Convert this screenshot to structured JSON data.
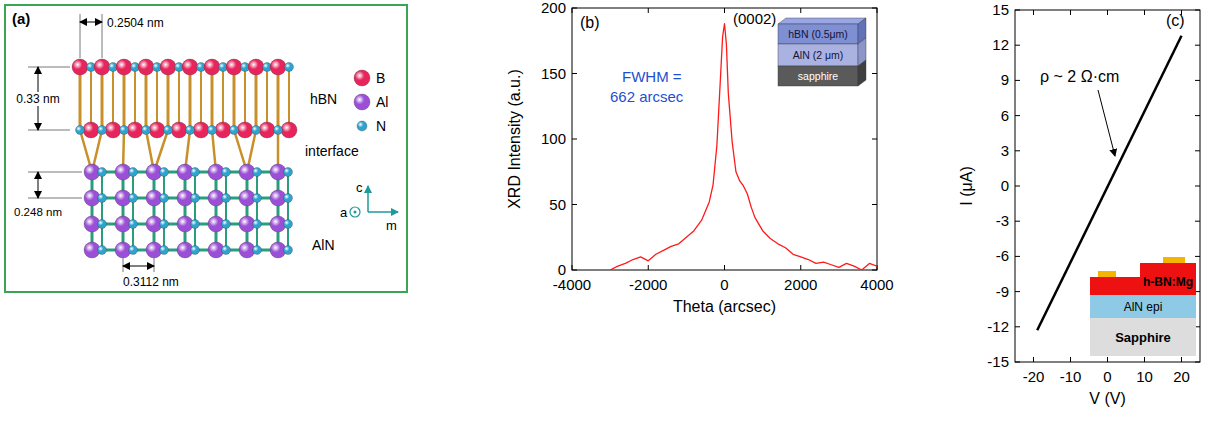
{
  "diagram": {
    "panel_label": "(a)",
    "dimensions": [
      "0.2504 nm",
      "0.33 nm",
      "0.248 nm",
      "0.3112 nm"
    ],
    "layers": [
      "hBN",
      "interface",
      "AlN"
    ],
    "legend": [
      {
        "label": "B",
        "color": "#e8245c"
      },
      {
        "label": "Al",
        "color": "#9b4fd6"
      },
      {
        "label": "N",
        "color": "#2fa3cf"
      }
    ],
    "axes": [
      "c",
      "a",
      "m"
    ]
  },
  "chart_data": [
    {
      "type": "line",
      "panel_label": "(b)",
      "x_label": "Theta (arcsec)",
      "y_label": "XRD Intensity (a.u.)",
      "annotations": [
        "(0002)",
        "FWHM =",
        "662 arcsec"
      ],
      "inset": [
        "hBN (0.5μm)",
        "AlN (2 μm)",
        "sapphire"
      ],
      "x": [
        -3000,
        -2800,
        -2600,
        -2400,
        -2200,
        -2000,
        -1800,
        -1600,
        -1400,
        -1200,
        -1000,
        -800,
        -600,
        -400,
        -300,
        -200,
        -100,
        -50,
        0,
        50,
        100,
        200,
        300,
        400,
        500,
        600,
        700,
        800,
        1000,
        1200,
        1400,
        1600,
        1800,
        2000,
        2200,
        2400,
        2600,
        2800,
        3000,
        3200,
        3400,
        3600,
        3800,
        4000
      ],
      "values": [
        0,
        3,
        5,
        8,
        10,
        7,
        12,
        15,
        18,
        20,
        25,
        30,
        38,
        52,
        65,
        95,
        150,
        178,
        188,
        172,
        135,
        98,
        75,
        68,
        64,
        58,
        48,
        40,
        30,
        24,
        20,
        17,
        12,
        10,
        8,
        5,
        6,
        4,
        2,
        5,
        3,
        0,
        5,
        3
      ],
      "color": "#ff1a1a",
      "xlim": [
        -4000,
        4000
      ],
      "xticks": [
        -4000,
        -2000,
        0,
        2000,
        4000
      ],
      "ylim": [
        0,
        200
      ],
      "yticks": [
        0,
        50,
        100,
        150,
        200
      ]
    },
    {
      "type": "line",
      "panel_label": "(c)",
      "x_label": "V (V)",
      "y_label": "I (μA)",
      "annotation": "ρ ~ 2 Ω·cm",
      "inset": [
        "h-BN:Mg",
        "AlN epi",
        "Sapphire"
      ],
      "x": [
        -19,
        20
      ],
      "values": [
        -12.3,
        12.8
      ],
      "color": "#000000",
      "xlim": [
        -25,
        25
      ],
      "xticks": [
        -20,
        -10,
        0,
        10,
        20
      ],
      "ylim": [
        -15,
        15
      ],
      "yticks": [
        -15,
        -12,
        -9,
        -6,
        -3,
        0,
        3,
        6,
        9,
        12,
        15
      ]
    }
  ]
}
